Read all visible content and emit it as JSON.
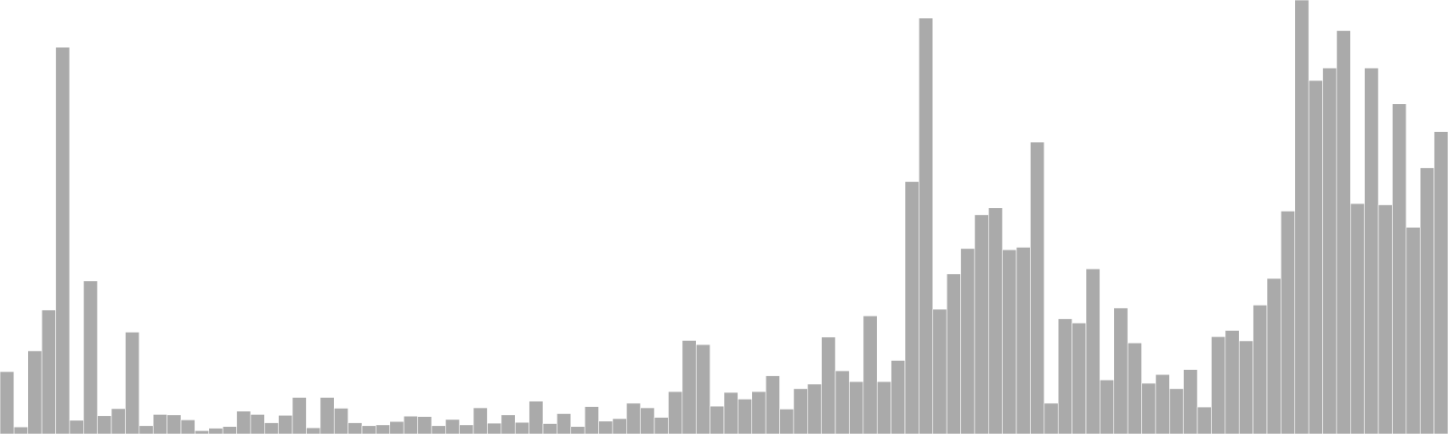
{
  "chart_data": {
    "type": "bar",
    "title": "",
    "xlabel": "",
    "ylabel": "",
    "grid": false,
    "legend": "none",
    "ylim": [
      0,
      1000
    ],
    "bar_color": "#aaaaaa",
    "bar_edge_color": "#ffffff",
    "values": [
      150,
      17,
      200,
      298,
      930,
      33,
      368,
      44,
      61,
      245,
      20,
      47,
      46,
      34,
      8,
      14,
      18,
      55,
      47,
      27,
      45,
      88,
      15,
      88,
      62,
      27,
      20,
      22,
      30,
      43,
      42,
      20,
      35,
      22,
      63,
      26,
      46,
      28,
      79,
      25,
      49,
      18,
      66,
      31,
      37,
      74,
      63,
      40,
      102,
      225,
      215,
      67,
      100,
      84,
      102,
      140,
      60,
      109,
      120,
      233,
      152,
      126,
      284,
      126,
      177,
      607,
      1000,
      300,
      385,
      446,
      527,
      544,
      443,
      449,
      702,
      74,
      277,
      267,
      397,
      130,
      303,
      219,
      122,
      143,
      109,
      155,
      65,
      234,
      249,
      224,
      310,
      374,
      536,
      1048,
      850,
      880,
      970,
      554,
      880,
      551,
      794,
      497,
      640,
      727
    ]
  }
}
